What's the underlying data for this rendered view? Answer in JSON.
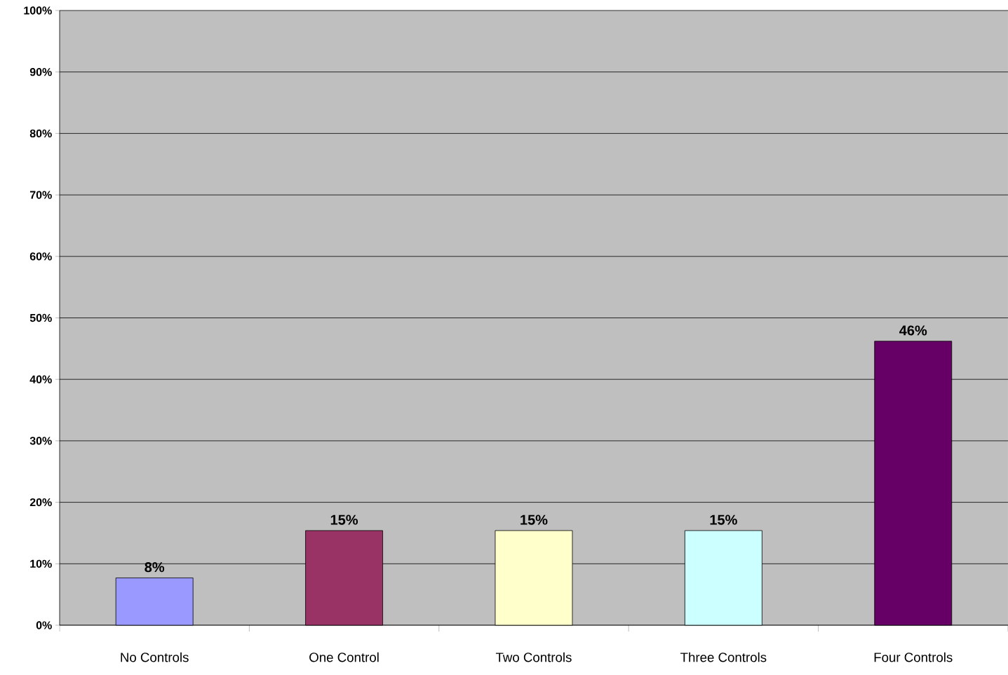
{
  "chart_data": {
    "type": "bar",
    "categories": [
      "No Controls",
      "One Control",
      "Two Controls",
      "Three Controls",
      "Four Controls"
    ],
    "values": [
      7.7,
      15.4,
      15.4,
      15.4,
      46.2
    ],
    "colors": [
      "#9999ff",
      "#993366",
      "#ffffcc",
      "#ccffff",
      "#660066"
    ],
    "value_labels": [
      "8%",
      "15%",
      "15%",
      "15%",
      "46%"
    ],
    "ylim": [
      0,
      100
    ],
    "yticks": [
      {
        "value": 0,
        "label": "0%"
      },
      {
        "value": 10,
        "label": "10%"
      },
      {
        "value": 20,
        "label": "20%"
      },
      {
        "value": 30,
        "label": "30%"
      },
      {
        "value": 40,
        "label": "40%"
      },
      {
        "value": 50,
        "label": "50%"
      },
      {
        "value": 60,
        "label": "60%"
      },
      {
        "value": 70,
        "label": "70%"
      },
      {
        "value": 80,
        "label": "80%"
      },
      {
        "value": 90,
        "label": "90%"
      },
      {
        "value": 100,
        "label": "100%"
      }
    ],
    "grid": "y"
  }
}
